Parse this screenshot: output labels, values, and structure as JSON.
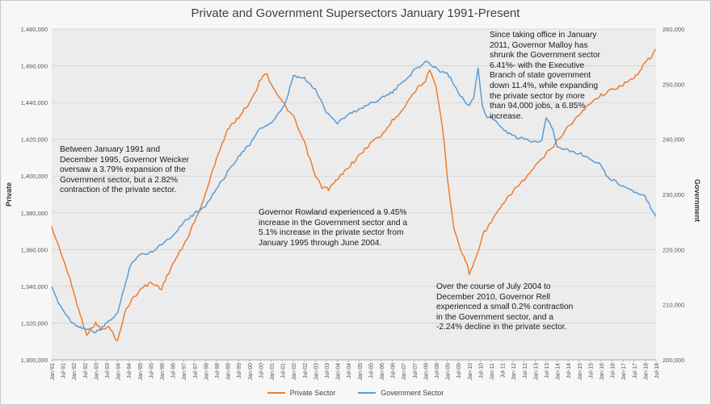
{
  "chart_data": {
    "type": "line",
    "title": "Private and Government Supersectors January 1991-Present",
    "ylabel_left": "Private",
    "ylabel_right": "Government",
    "left_axis": {
      "range": [
        1300000,
        1480000
      ],
      "ticks": [
        "1,300,000",
        "1,320,000",
        "1,340,000",
        "1,360,000",
        "1,380,000",
        "1,400,000",
        "1,420,000",
        "1,440,000",
        "1,460,000",
        "1,480,000"
      ]
    },
    "right_axis": {
      "range": [
        200000,
        260000
      ],
      "ticks": [
        "200,000",
        "210,000",
        "220,000",
        "230,000",
        "240,000",
        "250,000",
        "260,000"
      ]
    },
    "x_ticks": [
      "Jan-91",
      "Jul-91",
      "Jan-92",
      "Jul-92",
      "Jan-93",
      "Jul-93",
      "Jan-94",
      "Jul-94",
      "Jan-95",
      "Jul-95",
      "Jan-96",
      "Jul-96",
      "Jan-97",
      "Jul-97",
      "Jan-98",
      "Jul-98",
      "Jan-99",
      "Jul-99",
      "Jan-00",
      "Jul-00",
      "Jan-01",
      "Jul-01",
      "Jan-02",
      "Jul-02",
      "Jan-03",
      "Jul-03",
      "Jan-04",
      "Jul-04",
      "Jan-05",
      "Jul-05",
      "Jan-06",
      "Jul-06",
      "Jan-07",
      "Jul-07",
      "Jan-08",
      "Jul-08",
      "Jan-09",
      "Jul-09",
      "Jan-10",
      "Jul-10",
      "Jan-11",
      "Jul-11",
      "Jan-12",
      "Jul-12",
      "Jan-13",
      "Jul-13",
      "Jan-14",
      "Jul-14",
      "Jan-15",
      "Jul-15",
      "Jan-16",
      "Jul-16",
      "Jan-17",
      "Jul-17",
      "Jan-18",
      "Jul-18"
    ],
    "grid": true,
    "legend_position": "bottom",
    "series": [
      {
        "name": "Private Sector",
        "axis": "left",
        "color": "#ED7D31",
        "x": [
          1991.0,
          1991.5,
          1992.0,
          1992.3,
          1992.6,
          1993.0,
          1993.3,
          1993.6,
          1994.0,
          1994.3,
          1994.6,
          1995.0,
          1995.5,
          1996.0,
          1996.5,
          1997.0,
          1997.5,
          1998.0,
          1998.5,
          1999.0,
          1999.5,
          2000.0,
          2000.3,
          2000.6,
          2000.8,
          2001.0,
          2001.5,
          2002.0,
          2002.5,
          2003.0,
          2003.3,
          2003.6,
          2004.0,
          2004.5,
          2005.0,
          2005.5,
          2006.0,
          2006.5,
          2007.0,
          2007.5,
          2008.0,
          2008.2,
          2008.5,
          2008.8,
          2009.0,
          2009.3,
          2009.6,
          2009.9,
          2010.0,
          2010.3,
          2010.6,
          2011.0,
          2011.5,
          2012.0,
          2012.5,
          2013.0,
          2013.5,
          2014.0,
          2014.5,
          2015.0,
          2015.5,
          2016.0,
          2016.5,
          2017.0,
          2017.5,
          2018.0,
          2018.3,
          2018.5
        ],
        "y": [
          1372000,
          1356000,
          1337000,
          1324000,
          1314000,
          1320000,
          1316000,
          1318000,
          1310000,
          1325000,
          1332000,
          1338000,
          1342000,
          1339000,
          1352000,
          1362000,
          1375000,
          1390000,
          1410000,
          1425000,
          1432000,
          1440000,
          1447000,
          1455000,
          1455000,
          1450000,
          1440000,
          1432000,
          1418000,
          1400000,
          1394000,
          1393000,
          1398000,
          1405000,
          1411000,
          1418000,
          1422000,
          1430000,
          1437000,
          1446000,
          1452000,
          1457000,
          1448000,
          1425000,
          1400000,
          1372000,
          1360000,
          1352000,
          1347000,
          1355000,
          1368000,
          1375000,
          1384000,
          1392000,
          1398000,
          1405000,
          1412000,
          1419000,
          1427000,
          1433000,
          1440000,
          1444000,
          1447000,
          1450000,
          1453000,
          1462000,
          1465000,
          1469000
        ]
      },
      {
        "name": "Government Sector",
        "axis": "right",
        "color": "#5B9BD5",
        "x": [
          1991.0,
          1991.3,
          1991.6,
          1992.0,
          1992.3,
          1992.6,
          1993.0,
          1993.3,
          1993.6,
          1994.0,
          1994.3,
          1994.6,
          1995.0,
          1995.5,
          1996.0,
          1996.5,
          1997.0,
          1997.5,
          1998.0,
          1998.5,
          1999.0,
          1999.5,
          2000.0,
          2000.5,
          2001.0,
          2001.3,
          2001.6,
          2002.0,
          2002.5,
          2003.0,
          2003.5,
          2004.0,
          2004.5,
          2005.0,
          2005.5,
          2006.0,
          2006.5,
          2007.0,
          2007.5,
          2008.0,
          2008.3,
          2008.6,
          2009.0,
          2009.3,
          2009.6,
          2010.0,
          2010.2,
          2010.4,
          2010.6,
          2010.8,
          2011.0,
          2011.5,
          2012.0,
          2012.5,
          2013.0,
          2013.3,
          2013.5,
          2013.8,
          2014.0,
          2014.5,
          2015.0,
          2015.5,
          2016.0,
          2016.3,
          2016.6,
          2017.0,
          2017.5,
          2018.0,
          2018.5
        ],
        "y": [
          213000,
          210500,
          208500,
          206500,
          206000,
          205500,
          205000,
          205800,
          207000,
          208500,
          213000,
          217500,
          219000,
          219500,
          221000,
          222500,
          225000,
          226500,
          228000,
          231000,
          234000,
          237000,
          239000,
          242000,
          243000,
          244500,
          246000,
          251500,
          251000,
          249000,
          245000,
          243000,
          244500,
          245500,
          246500,
          247500,
          248500,
          250500,
          252500,
          254000,
          253500,
          252500,
          252000,
          250000,
          248000,
          246000,
          247500,
          253000,
          246000,
          244000,
          244000,
          242000,
          240500,
          240000,
          239500,
          240000,
          244000,
          242000,
          238500,
          238000,
          237500,
          236500,
          235500,
          233000,
          232500,
          231500,
          230500,
          229500,
          226000
        ]
      }
    ],
    "annotations": [
      {
        "id": "weicker",
        "text": "Between January 1991 and December 1995, Governor Weicker oversaw a 3.79% expansion of the Government sector, but a 2.82% contraction of the private sector."
      },
      {
        "id": "rowland",
        "text": "Governor Rowland experienced a 9.45% increase in the Government sector and a 5.1% increase in the private sector from January 1995 through June 2004."
      },
      {
        "id": "rell",
        "text": "Over the course of July 2004 to December 2010, Governor Rell experienced a small 0.2% contraction in the Government sector, and a -2.24% decline in the private sector."
      },
      {
        "id": "malloy",
        "text": "Since taking office in January 2011, Governor Malloy has shrunk the Government sector 6.41%- with the Executive Branch of state government down 11.4%, while expanding the private sector by more than 94,000 jobs, a 6.85% increase."
      }
    ]
  }
}
